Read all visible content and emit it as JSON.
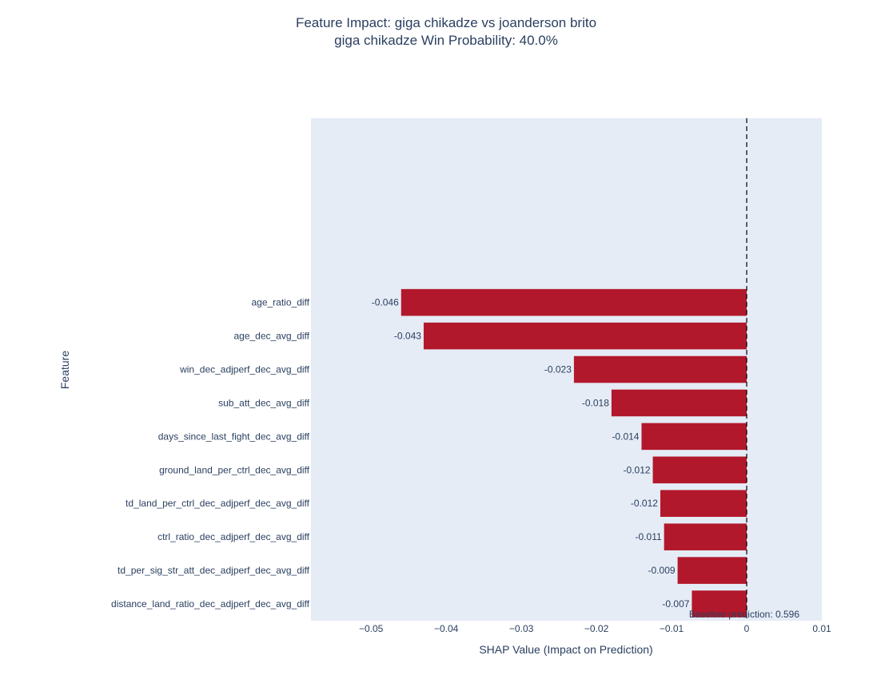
{
  "chart_data": {
    "type": "bar",
    "orientation": "horizontal",
    "title": "Feature Impact: giga chikadze vs joanderson brito",
    "subtitle": "giga chikadze Win Probability: 40.0%",
    "xlabel": "SHAP Value (Impact on Prediction)",
    "ylabel": "Feature",
    "xlim": [
      -0.058,
      0.01
    ],
    "x_ticks": [
      -0.05,
      -0.04,
      -0.03,
      -0.02,
      -0.01,
      0,
      0.01
    ],
    "x_tick_labels": [
      "−0.05",
      "−0.04",
      "−0.03",
      "−0.02",
      "−0.01",
      "0",
      "0.01"
    ],
    "categories": [
      "age_ratio_diff",
      "age_dec_avg_diff",
      "win_dec_adjperf_dec_avg_diff",
      "sub_att_dec_avg_diff",
      "days_since_last_fight_dec_avg_diff",
      "ground_land_per_ctrl_dec_avg_diff",
      "td_land_per_ctrl_dec_adjperf_dec_avg_diff",
      "ctrl_ratio_dec_adjperf_dec_avg_diff",
      "td_per_sig_str_att_dec_adjperf_dec_avg_diff",
      "distance_land_ratio_dec_adjperf_dec_avg_diff"
    ],
    "values": [
      -0.046,
      -0.043,
      -0.023,
      -0.018,
      -0.014,
      -0.0125,
      -0.0115,
      -0.011,
      -0.0092,
      -0.0073
    ],
    "value_labels": [
      "-0.046",
      "-0.043",
      "-0.023",
      "-0.018",
      "-0.014",
      "-0.012",
      "-0.012",
      "-0.011",
      "-0.009",
      "-0.007"
    ],
    "empty_slots_above": 5,
    "bar_color": "#b2182b",
    "plot_bg": "#e5ecf6",
    "reference_line": {
      "x": 0,
      "style": "dashed",
      "color": "#000000"
    },
    "annotation": "Baseline prediction: 0.596",
    "grid": false,
    "legend": "none"
  }
}
